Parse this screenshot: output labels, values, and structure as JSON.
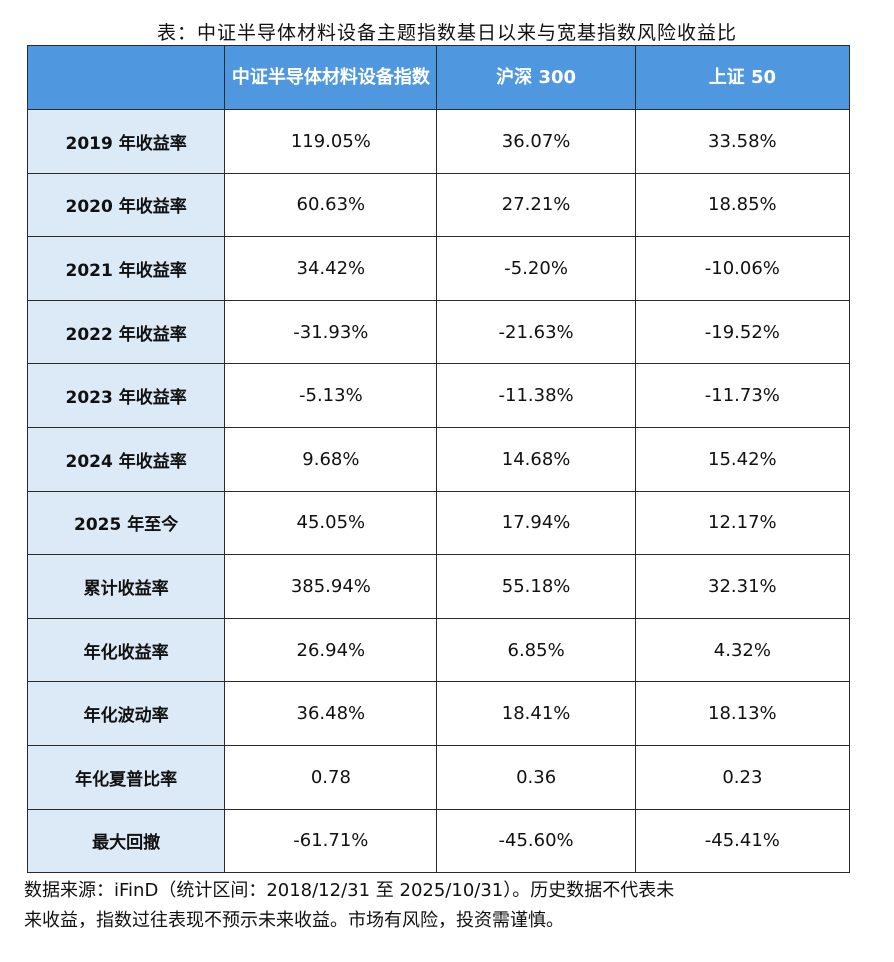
{
  "title": "表：中证半导体材料设备主题指数基日以来与宽基指数风险收益比",
  "table": {
    "headers": [
      "",
      "中证半导体材料设备指数",
      "沪深 300",
      "上证 50"
    ],
    "rows": [
      {
        "label": "2019 年收益率",
        "values": [
          "119.05%",
          "36.07%",
          "33.58%"
        ]
      },
      {
        "label": "2020 年收益率",
        "values": [
          "60.63%",
          "27.21%",
          "18.85%"
        ]
      },
      {
        "label": "2021 年收益率",
        "values": [
          "34.42%",
          "-5.20%",
          "-10.06%"
        ]
      },
      {
        "label": "2022 年收益率",
        "values": [
          "-31.93%",
          "-21.63%",
          "-19.52%"
        ]
      },
      {
        "label": "2023 年收益率",
        "values": [
          "-5.13%",
          "-11.38%",
          "-11.73%"
        ]
      },
      {
        "label": "2024 年收益率",
        "values": [
          "9.68%",
          "14.68%",
          "15.42%"
        ]
      },
      {
        "label": "2025 年至今",
        "values": [
          "45.05%",
          "17.94%",
          "12.17%"
        ]
      },
      {
        "label": "累计收益率",
        "values": [
          "385.94%",
          "55.18%",
          "32.31%"
        ]
      },
      {
        "label": "年化收益率",
        "values": [
          "26.94%",
          "6.85%",
          "4.32%"
        ]
      },
      {
        "label": "年化波动率",
        "values": [
          "36.48%",
          "18.41%",
          "18.13%"
        ]
      },
      {
        "label": "年化夏普比率",
        "values": [
          "0.78",
          "0.36",
          "0.23"
        ]
      },
      {
        "label": "最大回撤",
        "values": [
          "-61.71%",
          "-45.60%",
          "-45.41%"
        ]
      }
    ]
  },
  "source_line1": "数据来源：iFinD（统计区间：2018/12/31 至 2025/10/31）。历史数据不代表未",
  "source_line2": "来收益，指数过往表现不预示未来收益。市场有风险，投资需谨慎。",
  "colors": {
    "header_bg": "#4f97de",
    "rowhead_bg": "#dce9f6",
    "border": "#2b2b2b"
  }
}
